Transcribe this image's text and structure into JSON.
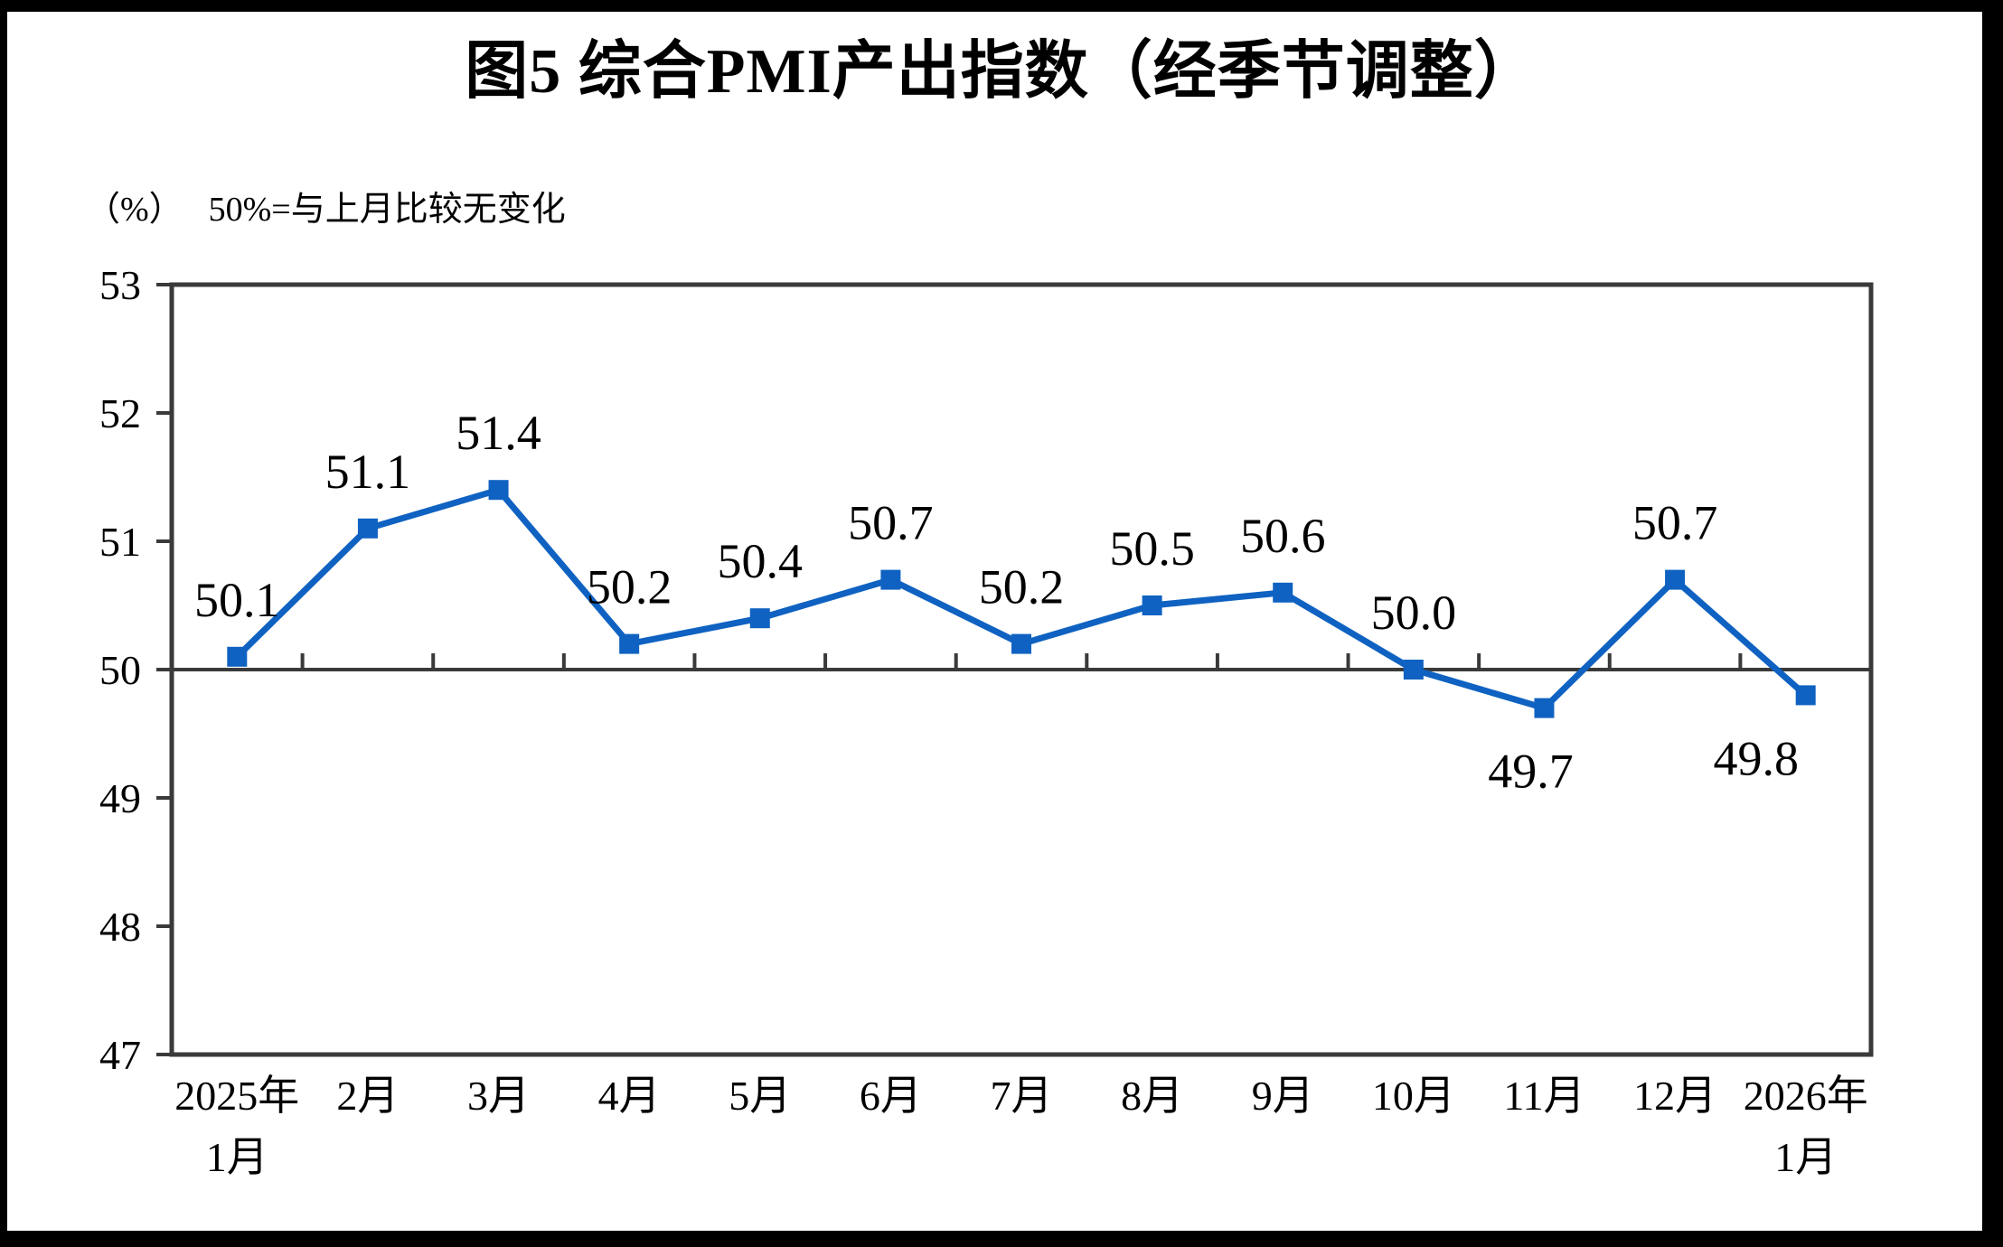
{
  "title": "图5 综合PMI产出指数（经季节调整）",
  "subtitle": {
    "unit": "（%）",
    "note": "50%=与上月比较无变化"
  },
  "chart_data": {
    "type": "line",
    "title": "图5 综合PMI产出指数（经季节调整）",
    "unit_label": "（%）",
    "annotation": "50%=与上月比较无变化",
    "categories": [
      "2025年1月",
      "2月",
      "3月",
      "4月",
      "5月",
      "6月",
      "7月",
      "8月",
      "9月",
      "10月",
      "11月",
      "12月",
      "2026年1月"
    ],
    "category_lines": [
      [
        "2025年",
        "1月"
      ],
      [
        "2月"
      ],
      [
        "3月"
      ],
      [
        "4月"
      ],
      [
        "5月"
      ],
      [
        "6月"
      ],
      [
        "7月"
      ],
      [
        "8月"
      ],
      [
        "9月"
      ],
      [
        "10月"
      ],
      [
        "11月"
      ],
      [
        "12月"
      ],
      [
        "2026年",
        "1月"
      ]
    ],
    "series": [
      {
        "name": "综合PMI产出指数",
        "values": [
          50.1,
          51.1,
          51.4,
          50.2,
          50.4,
          50.7,
          50.2,
          50.5,
          50.6,
          50.0,
          49.7,
          50.7,
          49.8
        ],
        "labels": [
          "50.1",
          "51.1",
          "51.4",
          "50.2",
          "50.4",
          "50.7",
          "50.2",
          "50.5",
          "50.6",
          "50.0",
          "49.7",
          "50.7",
          "49.8"
        ],
        "label_positions": [
          "above",
          "above",
          "above",
          "above",
          "above",
          "above",
          "above",
          "above",
          "above",
          "above",
          "below",
          "above",
          "below"
        ]
      }
    ],
    "xlabel": "",
    "ylabel": "%",
    "ylim": [
      47,
      53
    ],
    "yticks": [
      47,
      48,
      49,
      50,
      51,
      52,
      53
    ],
    "reference_line": 50,
    "grid": false,
    "legend_position": "none",
    "line_color": "#0F62C1",
    "marker": "square",
    "axis_color": "#3A3A3A",
    "text_color": "#000000",
    "background_color": "#FFFFFF"
  }
}
